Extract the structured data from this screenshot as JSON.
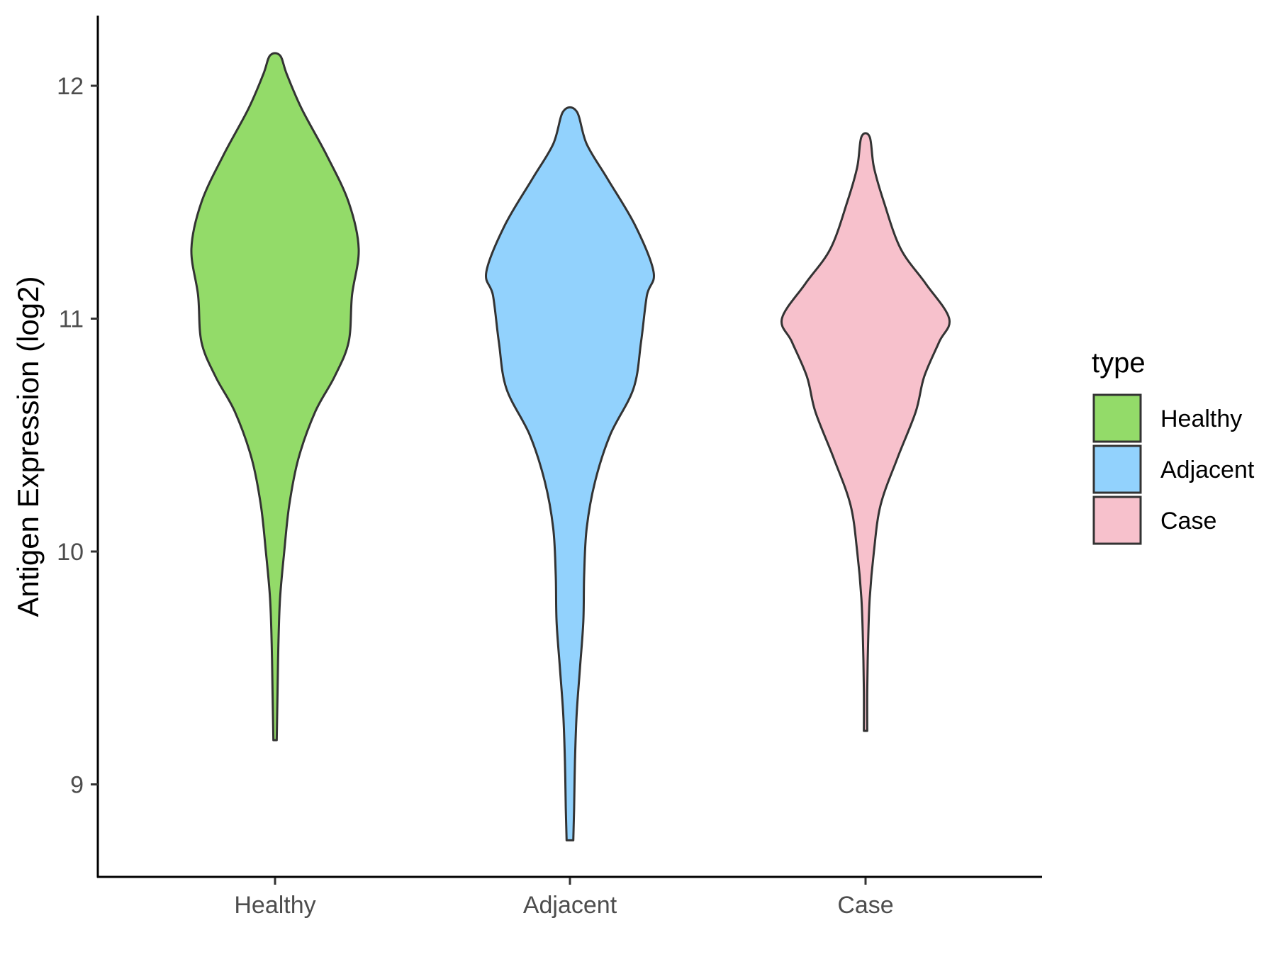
{
  "chart_data": {
    "type": "violin",
    "title": "",
    "xlabel": "",
    "ylabel": "Antigen Expression (log2)",
    "categories": [
      "Healthy",
      "Adjacent",
      "Case"
    ],
    "y_ticks": [
      "9",
      "10",
      "11",
      "12"
    ],
    "ylim": [
      8.6,
      12.3
    ],
    "grid": false,
    "legend": {
      "title": "type",
      "position": "right",
      "entries": [
        "Healthy",
        "Adjacent",
        "Case"
      ]
    },
    "colors": {
      "Healthy": "#93DB69",
      "Adjacent": "#92D2FD",
      "Case": "#F7C1CC",
      "outline": "#333333"
    },
    "series": [
      {
        "category": "Healthy",
        "min": 9.19,
        "max": 12.13,
        "density_profile": [
          [
            9.19,
            0.02
          ],
          [
            9.4,
            0.03
          ],
          [
            9.6,
            0.04
          ],
          [
            9.8,
            0.06
          ],
          [
            10.0,
            0.11
          ],
          [
            10.2,
            0.17
          ],
          [
            10.4,
            0.28
          ],
          [
            10.6,
            0.48
          ],
          [
            10.75,
            0.71
          ],
          [
            10.9,
            0.88
          ],
          [
            11.1,
            0.92
          ],
          [
            11.3,
            1.0
          ],
          [
            11.5,
            0.88
          ],
          [
            11.7,
            0.62
          ],
          [
            11.9,
            0.32
          ],
          [
            12.05,
            0.14
          ],
          [
            12.13,
            0.06
          ]
        ]
      },
      {
        "category": "Adjacent",
        "min": 8.76,
        "max": 11.89,
        "density_profile": [
          [
            8.76,
            0.04
          ],
          [
            8.9,
            0.05
          ],
          [
            9.1,
            0.06
          ],
          [
            9.3,
            0.08
          ],
          [
            9.5,
            0.12
          ],
          [
            9.7,
            0.16
          ],
          [
            9.9,
            0.17
          ],
          [
            10.1,
            0.2
          ],
          [
            10.3,
            0.3
          ],
          [
            10.5,
            0.48
          ],
          [
            10.7,
            0.76
          ],
          [
            10.9,
            0.85
          ],
          [
            11.1,
            0.92
          ],
          [
            11.2,
            1.0
          ],
          [
            11.4,
            0.78
          ],
          [
            11.6,
            0.45
          ],
          [
            11.75,
            0.2
          ],
          [
            11.89,
            0.08
          ]
        ]
      },
      {
        "category": "Case",
        "min": 9.23,
        "max": 11.78,
        "density_profile": [
          [
            9.23,
            0.02
          ],
          [
            9.4,
            0.02
          ],
          [
            9.6,
            0.03
          ],
          [
            9.8,
            0.05
          ],
          [
            10.0,
            0.1
          ],
          [
            10.2,
            0.18
          ],
          [
            10.4,
            0.38
          ],
          [
            10.6,
            0.6
          ],
          [
            10.75,
            0.7
          ],
          [
            10.9,
            0.88
          ],
          [
            11.0,
            1.0
          ],
          [
            11.15,
            0.72
          ],
          [
            11.3,
            0.42
          ],
          [
            11.5,
            0.22
          ],
          [
            11.65,
            0.1
          ],
          [
            11.78,
            0.05
          ]
        ]
      }
    ]
  }
}
